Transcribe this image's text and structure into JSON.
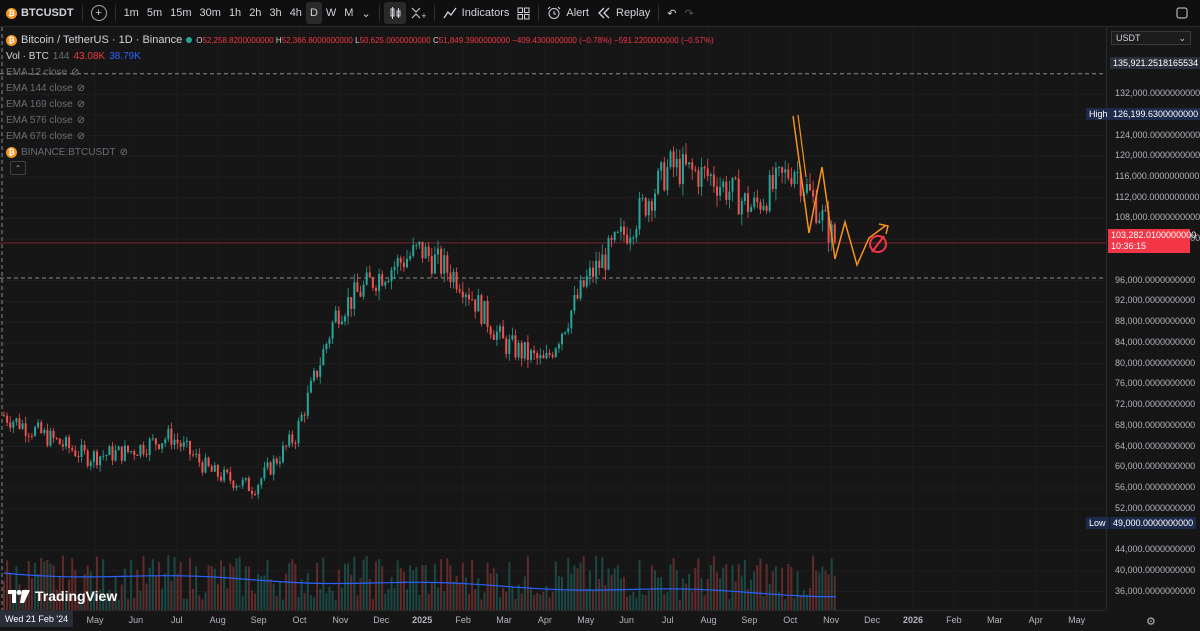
{
  "toolbar": {
    "symbol": "BTCUSDT",
    "intervals": [
      "1m",
      "5m",
      "15m",
      "30m",
      "1h",
      "2h",
      "3h",
      "4h",
      "D",
      "W",
      "M"
    ],
    "active_interval": "D",
    "indicators_label": "Indicators",
    "alert_label": "Alert",
    "replay_label": "Replay"
  },
  "legend": {
    "title": "Bitcoin / TetherUS · 1D · Binance",
    "o_label": "O",
    "o_value": "52,258.8200000000",
    "h_label": "H",
    "h_value": "52,366.8000000000",
    "l_label": "L",
    "l_value": "50,625.0000000000",
    "c_label": "C",
    "c_value": "51,849.3900000000",
    "change": "−409.4300000000 (−0.78%)",
    "change2": "−591.2200000000 (−0.57%)",
    "vol_label": "Vol · BTC",
    "vol_period": "144",
    "vol_value1": "43.08K",
    "vol_value2": "38.79K",
    "emas": [
      "EMA 12 close",
      "EMA 144 close",
      "EMA 169 close",
      "EMA 576 close",
      "EMA 676 close"
    ],
    "compare": "BINANCE:BTCUSDT"
  },
  "price_axis": {
    "currency": "USDT",
    "ticks": [
      "132,000.0000000000",
      "128,000.0000000000",
      "124,000.0000000000",
      "120,000.0000000000",
      "116,000.0000000000",
      "112,000.0000000000",
      "108,000.0000000000",
      "104,000.0000000000",
      "96,000.0000000000",
      "92,000.0000000000",
      "88,000.0000000000",
      "84,000.0000000000",
      "80,000.0000000000",
      "76,000.0000000000",
      "72,000.0000000000",
      "68,000.0000000000",
      "64,000.0000000000",
      "60,000.0000000000",
      "56,000.0000000000",
      "52,000.0000000000",
      "44,000.0000000000",
      "40,000.0000000000",
      "36,000.0000000000"
    ],
    "crosshair_price": "135,921.2518165534",
    "high_label": "High",
    "high_value": "126,199.6300000000",
    "current_price": "103,282.0100000000",
    "countdown": "10:36:15",
    "low_label": "Low",
    "low_value": "49,000.0000000000"
  },
  "time_axis": {
    "cursor_date": "Wed 21 Feb '24",
    "ticks": [
      "May",
      "Jun",
      "Jul",
      "Aug",
      "Sep",
      "Oct",
      "Nov",
      "Dec",
      "2025",
      "Feb",
      "Mar",
      "Apr",
      "May",
      "Jun",
      "Jul",
      "Aug",
      "Sep",
      "Oct",
      "Nov",
      "Dec",
      "2026",
      "Feb",
      "Mar",
      "Apr",
      "May"
    ]
  },
  "watermark": "TradingView",
  "colors": {
    "up": "#26a69a",
    "down": "#ef5350",
    "accent": "#2962ff",
    "projection": "#f7931a",
    "current_price_bg": "#f23645"
  },
  "chart_data": {
    "type": "line",
    "title": "Bitcoin / TetherUS · 1D · Binance",
    "xlabel": "",
    "ylabel": "",
    "ylim": [
      34000,
      138000
    ],
    "x": [
      "2024-03",
      "2024-04",
      "2024-05",
      "2024-06",
      "2024-07",
      "2024-08",
      "2024-09",
      "2024-10",
      "2024-11",
      "2024-12",
      "2025-01",
      "2025-02",
      "2025-03",
      "2025-04",
      "2025-05",
      "2025-06",
      "2025-07",
      "2025-08",
      "2025-09",
      "2025-10",
      "2025-11"
    ],
    "series": [
      {
        "values": [
          70000,
          66000,
          62000,
          63000,
          66000,
          59000,
          56000,
          66000,
          90000,
          97000,
          102000,
          96000,
          84000,
          80000,
          96000,
          106000,
          118000,
          116000,
          110000,
          118000,
          103282
        ]
      }
    ]
  }
}
